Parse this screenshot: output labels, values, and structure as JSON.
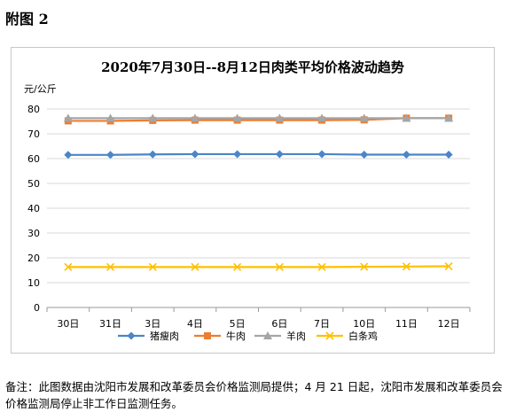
{
  "heading": "附图 2",
  "footnote": "备注：此图数据由沈阳市发展和改革委员会价格监测局提供；4 月 21 日起，沈阳市发展和改革委员会价格监测局停止非工作日监测任务。",
  "chart_data": {
    "type": "line",
    "title": "2020年7月30日--8月12日肉类平均价格波动趋势",
    "ylabel": "元/公斤",
    "xlabel": "",
    "categories": [
      "30日",
      "31日",
      "3日",
      "4日",
      "5日",
      "6日",
      "7日",
      "10日",
      "11日",
      "12日"
    ],
    "ylim": [
      0,
      80
    ],
    "yticks": [
      0,
      10,
      20,
      30,
      40,
      50,
      60,
      70,
      80
    ],
    "grid": true,
    "legend_position": "bottom",
    "series": [
      {
        "name": "猪瘦肉",
        "color": "#4a86c8",
        "marker": "diamond",
        "values": [
          61.5,
          61.5,
          61.7,
          61.8,
          61.8,
          61.8,
          61.8,
          61.6,
          61.6,
          61.6
        ]
      },
      {
        "name": "牛肉",
        "color": "#ed7d31",
        "marker": "square",
        "values": [
          75.2,
          75.2,
          75.4,
          75.5,
          75.5,
          75.5,
          75.5,
          75.6,
          76.3,
          76.3
        ]
      },
      {
        "name": "羊肉",
        "color": "#a5a5a5",
        "marker": "triangle",
        "values": [
          76.3,
          76.3,
          76.3,
          76.3,
          76.3,
          76.3,
          76.3,
          76.3,
          76.3,
          76.3
        ]
      },
      {
        "name": "白条鸡",
        "color": "#ffc000",
        "marker": "x",
        "values": [
          16.3,
          16.3,
          16.3,
          16.3,
          16.3,
          16.3,
          16.3,
          16.4,
          16.5,
          16.6
        ]
      }
    ]
  }
}
